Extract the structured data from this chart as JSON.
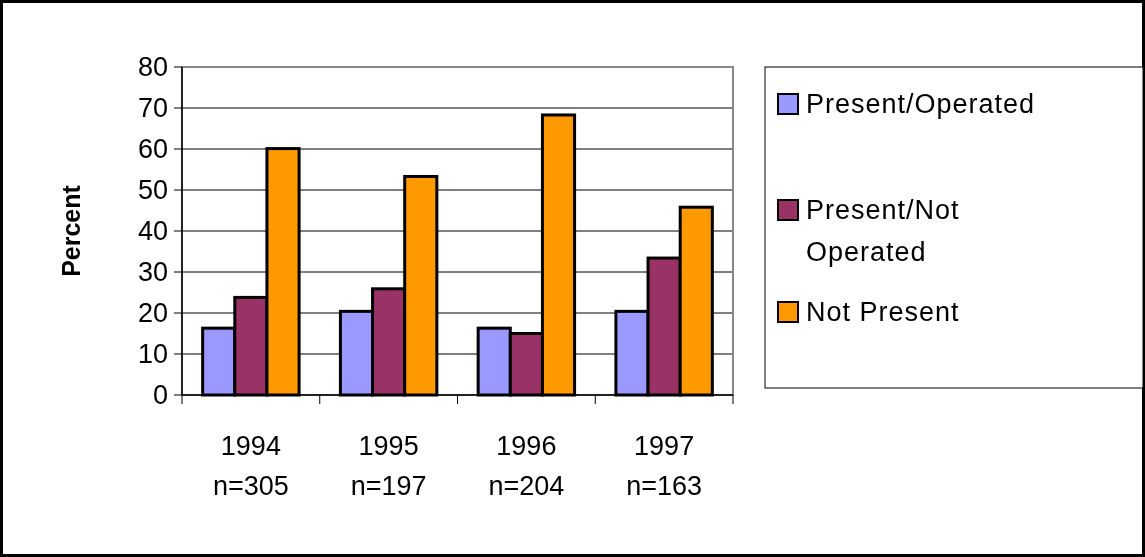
{
  "chart_data": {
    "type": "bar",
    "ylabel": "Percent",
    "categories": [
      "1994\nn=305",
      "1995\nn=197",
      "1996\nn=204",
      "1997\nn=163"
    ],
    "series": [
      {
        "name": "Present/Operated",
        "color": "#9999ff",
        "values": [
          16.3,
          20.4,
          16.3,
          20.4
        ]
      },
      {
        "name": "Present/Not Operated",
        "color": "#993366",
        "values": [
          23.8,
          25.9,
          15.0,
          33.4
        ]
      },
      {
        "name": "Not Present",
        "color": "#ff9900",
        "values": [
          60.1,
          53.3,
          68.3,
          45.8
        ]
      }
    ],
    "ylim": [
      0,
      80
    ],
    "yticks": [
      0,
      10,
      20,
      30,
      40,
      50,
      60,
      70,
      80
    ],
    "grid": "y",
    "legend": "right"
  }
}
